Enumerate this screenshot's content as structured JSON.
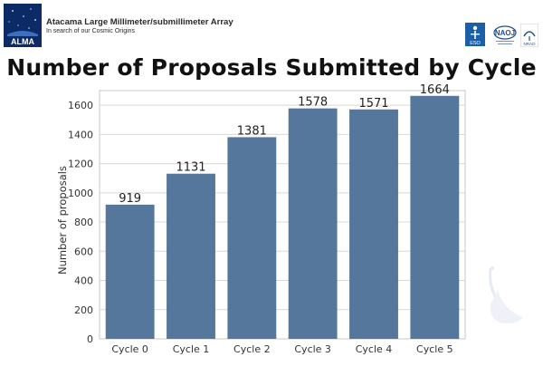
{
  "header": {
    "org_title": "Atacama Large Millimeter/submillimeter Array",
    "org_subtitle": "In search of our Cosmic Origins",
    "logo_text": "ALMA",
    "partners": [
      {
        "name": "eso-logo",
        "text": "ESO"
      },
      {
        "name": "naoj-logo",
        "text": "NAOJ"
      },
      {
        "name": "nrao-logo",
        "text": "NRAO"
      }
    ]
  },
  "title": "Number of Proposals Submitted by Cycle",
  "colors": {
    "bar": "#56779c",
    "accent_blue": "#1b4f8c"
  },
  "chart_data": {
    "type": "bar",
    "categories": [
      "Cycle 0",
      "Cycle 1",
      "Cycle 2",
      "Cycle 3",
      "Cycle 4",
      "Cycle 5"
    ],
    "values": [
      919,
      1131,
      1381,
      1578,
      1571,
      1664
    ],
    "data_labels": [
      "919",
      "1131",
      "1381",
      "1578",
      "1571",
      "1664"
    ],
    "title": "Number of Proposals Submitted by Cycle",
    "xlabel": "",
    "ylabel": "Number of proposals",
    "ylim": [
      0,
      1700
    ],
    "yticks": [
      0,
      200,
      400,
      600,
      800,
      1000,
      1200,
      1400,
      1600
    ],
    "ytick_labels": [
      "0",
      "200",
      "400",
      "600",
      "800",
      "1000",
      "1200",
      "1400",
      "1600"
    ],
    "grid": true,
    "legend": "none"
  }
}
